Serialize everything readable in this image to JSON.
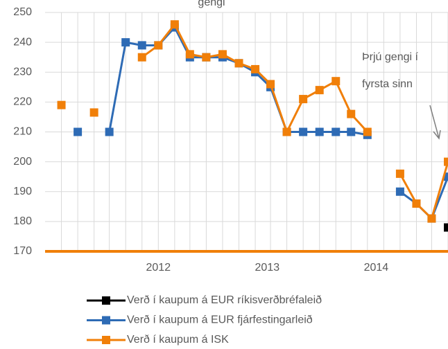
{
  "chart_data": {
    "type": "line",
    "title": "gengi",
    "annotations": [
      "Þrjú gengi í",
      "fyrsta sinn"
    ],
    "x": [
      2011.11,
      2011.26,
      2011.41,
      2011.55,
      2011.7,
      2011.85,
      2012.0,
      2012.15,
      2012.29,
      2012.44,
      2012.59,
      2012.74,
      2012.89,
      2013.03,
      2013.18,
      2013.33,
      2013.48,
      2013.63,
      2013.77,
      2013.92,
      2014.07,
      2014.22,
      2014.37,
      2014.51,
      2014.66
    ],
    "xlim": [
      2010.96,
      2014.66
    ],
    "xticks": [
      2012,
      2013,
      2014
    ],
    "ylim": [
      170,
      250
    ],
    "yticks": [
      170,
      180,
      190,
      200,
      210,
      220,
      230,
      240,
      250
    ],
    "grid": true,
    "series": [
      {
        "name": "Verð í kaupum á EUR ríkisverðbréfaleið",
        "color": "#000000",
        "values": [
          null,
          null,
          null,
          null,
          null,
          null,
          null,
          null,
          null,
          null,
          null,
          null,
          null,
          null,
          null,
          null,
          null,
          null,
          null,
          null,
          null,
          null,
          null,
          null,
          178
        ]
      },
      {
        "name": "Verð í kaupum á EUR fjárfestingarleið",
        "color": "#2e6bb5",
        "values": [
          null,
          210,
          null,
          210,
          240,
          239,
          239,
          245,
          235,
          235,
          235,
          233,
          230,
          225,
          210,
          210,
          210,
          210,
          210,
          209,
          null,
          190,
          186,
          181,
          195
        ]
      },
      {
        "name": "Verð í kaupum á ISK",
        "color": "#f07f09",
        "values": [
          219,
          null,
          216.5,
          null,
          null,
          235,
          239,
          246,
          236,
          235,
          236,
          233,
          231,
          226,
          210,
          221,
          224,
          227,
          216,
          210,
          null,
          196,
          186,
          181,
          200
        ]
      }
    ]
  }
}
